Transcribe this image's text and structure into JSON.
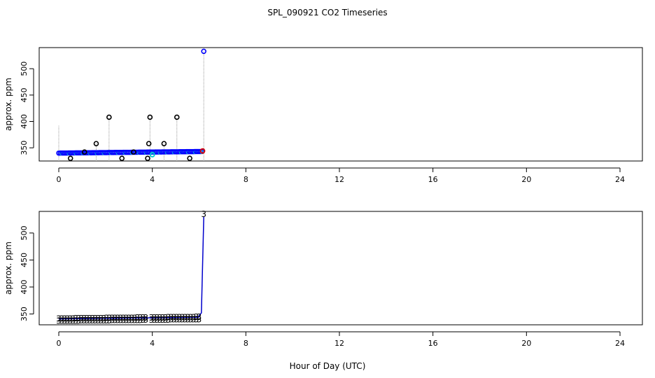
{
  "title": "SPL_090921  CO2 Timeseries",
  "xlabel": "Hour of Day (UTC)",
  "chart_data": [
    {
      "type": "scatter",
      "panel": "top",
      "ylabel": "approx. ppm",
      "xlim": [
        0,
        24
      ],
      "ylim": [
        325,
        540
      ],
      "xticks": [
        0,
        4,
        8,
        12,
        16,
        20,
        24
      ],
      "yticks": [
        350,
        400,
        450,
        500
      ],
      "colors": {
        "black": "#000000",
        "blue": "#0000ff",
        "cyan": "#00cccc",
        "red": "#dd0000",
        "drop": "#999999"
      },
      "baseline_series": {
        "name": "blue points",
        "x_start": 0.0,
        "x_end": 6.1,
        "step": 0.06,
        "y_start": 340,
        "y_end": 343
      },
      "black_points": [
        {
          "x": 0.5,
          "y": 330
        },
        {
          "x": 1.1,
          "y": 342
        },
        {
          "x": 1.6,
          "y": 358
        },
        {
          "x": 2.15,
          "y": 408
        },
        {
          "x": 2.7,
          "y": 330
        },
        {
          "x": 3.2,
          "y": 342
        },
        {
          "x": 3.8,
          "y": 330
        },
        {
          "x": 3.85,
          "y": 358
        },
        {
          "x": 3.9,
          "y": 408
        },
        {
          "x": 4.5,
          "y": 358
        },
        {
          "x": 5.05,
          "y": 408
        },
        {
          "x": 5.6,
          "y": 330
        }
      ],
      "cyan_points": [
        {
          "x": 4.0,
          "y": 337
        }
      ],
      "red_points": [
        {
          "x": 6.15,
          "y": 344
        }
      ],
      "outlier_points": [
        {
          "x": 6.2,
          "y": 533
        }
      ],
      "drop_lines": [
        {
          "x": 0.0,
          "y": 392
        },
        {
          "x": 2.15,
          "y": 408
        },
        {
          "x": 3.9,
          "y": 408
        },
        {
          "x": 5.05,
          "y": 408
        },
        {
          "x": 6.2,
          "y": 533
        },
        {
          "x": 1.6,
          "y": 358
        },
        {
          "x": 4.5,
          "y": 358
        }
      ]
    },
    {
      "type": "line",
      "panel": "bottom",
      "ylabel": "approx. ppm",
      "xlim": [
        0,
        24
      ],
      "ylim": [
        330,
        540
      ],
      "xticks": [
        0,
        4,
        8,
        12,
        16,
        20,
        24
      ],
      "yticks": [
        350,
        400,
        450,
        500
      ],
      "colors": {
        "line": "#0000cc",
        "label": "#0000cc",
        "cyan": "#00cccc",
        "green": "#22aa22"
      },
      "point_label": "3",
      "series_upper": {
        "x_start": 0.0,
        "x_end": 5.95,
        "step": 0.12,
        "y_start": 341,
        "y_end": 344
      },
      "series_lower": {
        "x_start": 0.0,
        "x_end": 5.95,
        "step": 0.12,
        "y_start": 337,
        "y_end": 340
      },
      "gap": [
        3.75,
        3.95
      ],
      "spike": [
        {
          "x": 5.95,
          "y": 344
        },
        {
          "x": 6.1,
          "y": 352
        },
        {
          "x": 6.2,
          "y": 530
        }
      ],
      "spike_label": {
        "x": 6.2,
        "y": 535,
        "text": "3"
      }
    }
  ]
}
